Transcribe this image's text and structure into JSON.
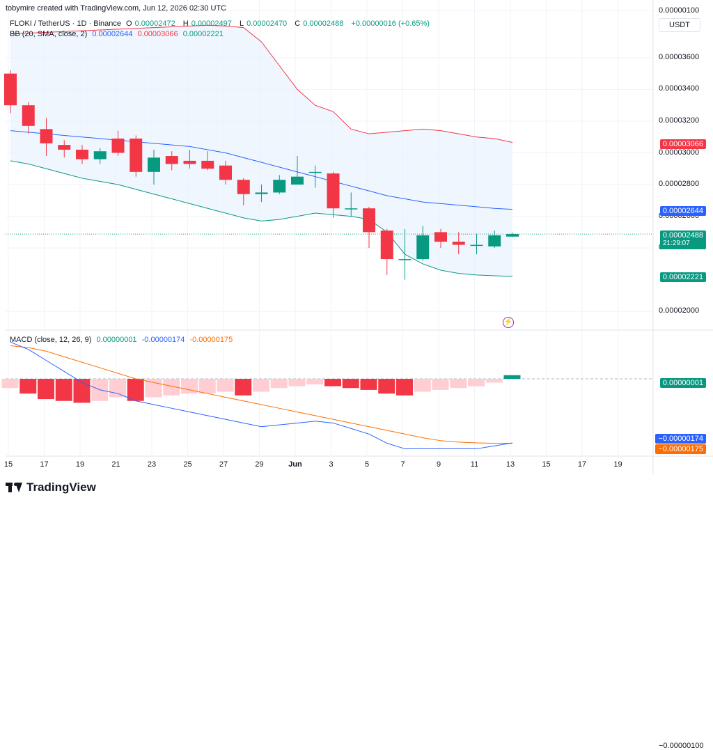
{
  "header": {
    "created_by": "tobymire created with TradingView.com, Jun 12, 2026 02:30 UTC",
    "symbol": "FLOKI / TetherUS · 1D · Binance",
    "ohlc": {
      "o_label": "O",
      "o": "0.00002472",
      "h_label": "H",
      "h": "0.00002497",
      "l_label": "L",
      "l": "0.00002470",
      "c_label": "C",
      "c": "0.00002488",
      "change": "+0.00000016 (+0.65%)"
    },
    "bb_label": "BB (20, SMA, close, 2)",
    "bb_values": {
      "basis": "0.00002644",
      "upper": "0.00003066",
      "lower": "0.00002221"
    },
    "macd_label": "MACD (close, 12, 26, 9)",
    "macd_values": {
      "hist": "0.00000001",
      "macd": "-0.00000174",
      "signal": "-0.00000175"
    }
  },
  "currency": "USDT",
  "price_axis": {
    "ticks": [
      "0.00003600",
      "0.00003400",
      "0.00003200",
      "0.00003000",
      "0.00002800",
      "0.00002600",
      "0.00002400",
      "0.00002000"
    ],
    "labels": {
      "upper": "0.00003066",
      "basis": "0.00002644",
      "last": "0.00002488",
      "countdown": "21:29:07",
      "lower": "0.00002221"
    }
  },
  "macd_axis": {
    "ticks": [
      "0.00000100",
      "−0.00000100"
    ],
    "labels": {
      "hist": "0.00000001",
      "macd": "−0.00000174",
      "signal": "−0.00000175"
    }
  },
  "time_axis": [
    "15",
    "17",
    "19",
    "21",
    "23",
    "25",
    "27",
    "29",
    "Jun",
    "3",
    "5",
    "7",
    "9",
    "11",
    "13",
    "15",
    "17",
    "19"
  ],
  "brand": "TradingView",
  "colors": {
    "up": "#089981",
    "down": "#f23645",
    "basis": "#2962ff",
    "upper": "#f23645",
    "lower": "#089981",
    "band_fill": "#e3effd",
    "macd": "#2962ff",
    "signal": "#ff6d00",
    "hist_strong_neg": "#f23645",
    "hist_weak_neg": "#ffcdd2"
  },
  "chart_data": [
    {
      "type": "candlestick",
      "title": "FLOKI / TetherUS · 1D · Binance",
      "x": [
        "May 15",
        "May 16",
        "May 17",
        "May 18",
        "May 19",
        "May 20",
        "May 21",
        "May 22",
        "May 23",
        "May 24",
        "May 25",
        "May 26",
        "May 27",
        "May 28",
        "May 29",
        "May 30",
        "May 31",
        "Jun 1",
        "Jun 2",
        "Jun 3",
        "Jun 4",
        "Jun 5",
        "Jun 6",
        "Jun 7",
        "Jun 8",
        "Jun 9",
        "Jun 10",
        "Jun 11",
        "Jun 12"
      ],
      "open": [
        3.5e-05,
        3.3e-05,
        3.15e-05,
        3.05e-05,
        3.02e-05,
        2.96e-05,
        3.09e-05,
        3.09e-05,
        2.88e-05,
        2.98e-05,
        2.95e-05,
        2.95e-05,
        2.92e-05,
        2.83e-05,
        2.74e-05,
        2.75e-05,
        2.8e-05,
        2.88e-05,
        2.87e-05,
        2.65e-05,
        2.65e-05,
        2.51e-05,
        2.33e-05,
        2.33e-05,
        2.5e-05,
        2.44e-05,
        2.42e-05,
        2.41e-05,
        2.472e-05
      ],
      "high": [
        3.52e-05,
        3.32e-05,
        3.22e-05,
        3.08e-05,
        3.05e-05,
        3.03e-05,
        3.14e-05,
        3.11e-05,
        3.02e-05,
        3.01e-05,
        3.02e-05,
        3.01e-05,
        2.95e-05,
        2.84e-05,
        2.8e-05,
        2.86e-05,
        2.98e-05,
        2.92e-05,
        2.88e-05,
        2.75e-05,
        2.66e-05,
        2.52e-05,
        2.52e-05,
        2.54e-05,
        2.52e-05,
        2.5e-05,
        2.49e-05,
        2.51e-05,
        2.497e-05
      ],
      "low": [
        3.25e-05,
        3.12e-05,
        2.98e-05,
        2.97e-05,
        2.93e-05,
        2.93e-05,
        2.98e-05,
        2.85e-05,
        2.8e-05,
        2.89e-05,
        2.9e-05,
        2.89e-05,
        2.8e-05,
        2.67e-05,
        2.69e-05,
        2.74e-05,
        2.8e-05,
        2.78e-05,
        2.59e-05,
        2.6e-05,
        2.4e-05,
        2.23e-05,
        2.2e-05,
        2.32e-05,
        2.4e-05,
        2.36e-05,
        2.36e-05,
        2.4e-05,
        2.47e-05
      ],
      "close": [
        3.3e-05,
        3.17e-05,
        3.06e-05,
        3.02e-05,
        2.96e-05,
        3.01e-05,
        3e-05,
        2.88e-05,
        2.97e-05,
        2.93e-05,
        2.93e-05,
        2.9e-05,
        2.83e-05,
        2.74e-05,
        2.75e-05,
        2.83e-05,
        2.85e-05,
        2.88e-05,
        2.65e-05,
        2.65e-05,
        2.5e-05,
        2.33e-05,
        2.33e-05,
        2.48e-05,
        2.44e-05,
        2.42e-05,
        2.42e-05,
        2.48e-05,
        2.488e-05
      ],
      "bb_upper": [
        3.75e-05,
        3.755e-05,
        3.76e-05,
        3.765e-05,
        3.77e-05,
        3.775e-05,
        3.78e-05,
        3.785e-05,
        3.79e-05,
        3.795e-05,
        3.8e-05,
        3.805e-05,
        3.8e-05,
        3.79e-05,
        3.7e-05,
        3.55e-05,
        3.4e-05,
        3.3e-05,
        3.26e-05,
        3.15e-05,
        3.12e-05,
        3.13e-05,
        3.14e-05,
        3.15e-05,
        3.14e-05,
        3.12e-05,
        3.1e-05,
        3.09e-05,
        3.066e-05
      ],
      "bb_basis": [
        3.14e-05,
        3.13e-05,
        3.12e-05,
        3.11e-05,
        3.1e-05,
        3.09e-05,
        3.08e-05,
        3.07e-05,
        3.06e-05,
        3.05e-05,
        3.04e-05,
        3.02e-05,
        3e-05,
        2.97e-05,
        2.94e-05,
        2.91e-05,
        2.88e-05,
        2.85e-05,
        2.82e-05,
        2.79e-05,
        2.76e-05,
        2.73e-05,
        2.71e-05,
        2.69e-05,
        2.68e-05,
        2.67e-05,
        2.66e-05,
        2.65e-05,
        2.644e-05
      ],
      "bb_lower": [
        2.95e-05,
        2.93e-05,
        2.9e-05,
        2.87e-05,
        2.84e-05,
        2.82e-05,
        2.8e-05,
        2.77e-05,
        2.74e-05,
        2.71e-05,
        2.68e-05,
        2.65e-05,
        2.62e-05,
        2.59e-05,
        2.57e-05,
        2.58e-05,
        2.6e-05,
        2.62e-05,
        2.61e-05,
        2.6e-05,
        2.58e-05,
        2.5e-05,
        2.36e-05,
        2.3e-05,
        2.26e-05,
        2.24e-05,
        2.23e-05,
        2.225e-05,
        2.221e-05
      ],
      "ylim": [
        1.9e-05,
        3.92e-05
      ],
      "grid": true
    },
    {
      "type": "bar+line",
      "title": "MACD (close, 12, 26, 9)",
      "x": [
        "May 15",
        "May 16",
        "May 17",
        "May 18",
        "May 19",
        "May 20",
        "May 21",
        "May 22",
        "May 23",
        "May 24",
        "May 25",
        "May 26",
        "May 27",
        "May 28",
        "May 29",
        "May 30",
        "May 31",
        "Jun 1",
        "Jun 2",
        "Jun 3",
        "Jun 4",
        "Jun 5",
        "Jun 6",
        "Jun 7",
        "Jun 8",
        "Jun 9",
        "Jun 10",
        "Jun 11",
        "Jun 12"
      ],
      "histogram": [
        -2.5e-08,
        -4e-08,
        -5.5e-08,
        -6e-08,
        -6.5e-08,
        -6e-08,
        -5e-08,
        -6e-08,
        -5e-08,
        -4.5e-08,
        -4e-08,
        -4e-08,
        -3.5e-08,
        -4.5e-08,
        -3.5e-08,
        -2.5e-08,
        -2e-08,
        -1.5e-08,
        -2e-08,
        -2.5e-08,
        -3e-08,
        -4e-08,
        -4.5e-08,
        -3.5e-08,
        -3e-08,
        -2.5e-08,
        -2e-08,
        -1e-08,
        1e-08
      ],
      "macd": [
        1e-07,
        8e-08,
        5e-08,
        2e-08,
        -1e-08,
        -3e-08,
        -4e-08,
        -6e-08,
        -7e-08,
        -8e-08,
        -9e-08,
        -1e-07,
        -1.1e-07,
        -1.2e-07,
        -1.3e-07,
        -1.25e-07,
        -1.2e-07,
        -1.15e-07,
        -1.2e-07,
        -1.35e-07,
        -1.5e-07,
        -1.75e-07,
        -1.9e-07,
        -1.9e-07,
        -1.9e-07,
        -1.9e-07,
        -1.9e-07,
        -1.82e-07,
        -1.74e-07
      ],
      "signal": [
        9e-08,
        8.5e-08,
        7.5e-08,
        6e-08,
        4.5e-08,
        3e-08,
        1.5e-08,
        0.0,
        -1e-08,
        -2e-08,
        -3e-08,
        -4e-08,
        -5e-08,
        -6e-08,
        -7e-08,
        -8e-08,
        -9e-08,
        -1e-07,
        -1.1e-07,
        -1.2e-07,
        -1.3e-07,
        -1.4e-07,
        -1.5e-07,
        -1.6e-07,
        -1.68e-07,
        -1.72e-07,
        -1.74e-07,
        -1.75e-07,
        -1.75e-07
      ],
      "ylim": [
        -2.1e-07,
        1.25e-07
      ],
      "grid": true
    }
  ]
}
